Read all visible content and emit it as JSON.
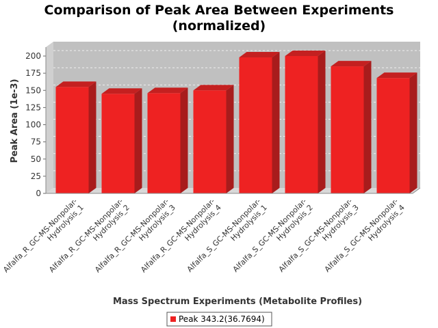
{
  "chart_data": {
    "type": "bar",
    "title_lines": [
      "Comparison of Peak Area Between Experiments",
      "(normalized)"
    ],
    "xlabel": "Mass Spectrum Experiments (Metabolite Profiles)",
    "ylabel": "Peak Area (1e-3)",
    "ylim": [
      0,
      200
    ],
    "yticks": [
      0,
      25,
      50,
      75,
      100,
      125,
      150,
      175,
      200
    ],
    "grid": true,
    "legend_position": "bottom",
    "categories": [
      [
        "Alfalfa_R_GC-MS-Nonpolar-",
        "Hydrolysis_1"
      ],
      [
        "Alfalfa_R_GC-MS-Nonpolar-",
        "Hydrolysis_2"
      ],
      [
        "Alfalfa_R_GC-MS-Nonpolar-",
        "Hydrolysis_3"
      ],
      [
        "Alfalfa_R_GC-MS-Nonpolar-",
        "Hydrolysis_4"
      ],
      [
        "Alfalfa_S_GC-MS-Nonpolar-",
        "Hydrolysis_1"
      ],
      [
        "Alfalfa_S_GC-MS-Nonpolar-",
        "Hydrolysis_2"
      ],
      [
        "Alfalfa_S_GC-MS-Nonpolar-",
        "Hydrolysis_3"
      ],
      [
        "Alfalfa_S_GC-MS-Nonpolar-",
        "Hydrolysis_4"
      ]
    ],
    "series": [
      {
        "name": "Peak 343.2(36.7694)",
        "color": "#ee2222",
        "values": [
          155,
          145,
          146,
          150,
          198,
          200,
          185,
          168
        ]
      }
    ]
  }
}
